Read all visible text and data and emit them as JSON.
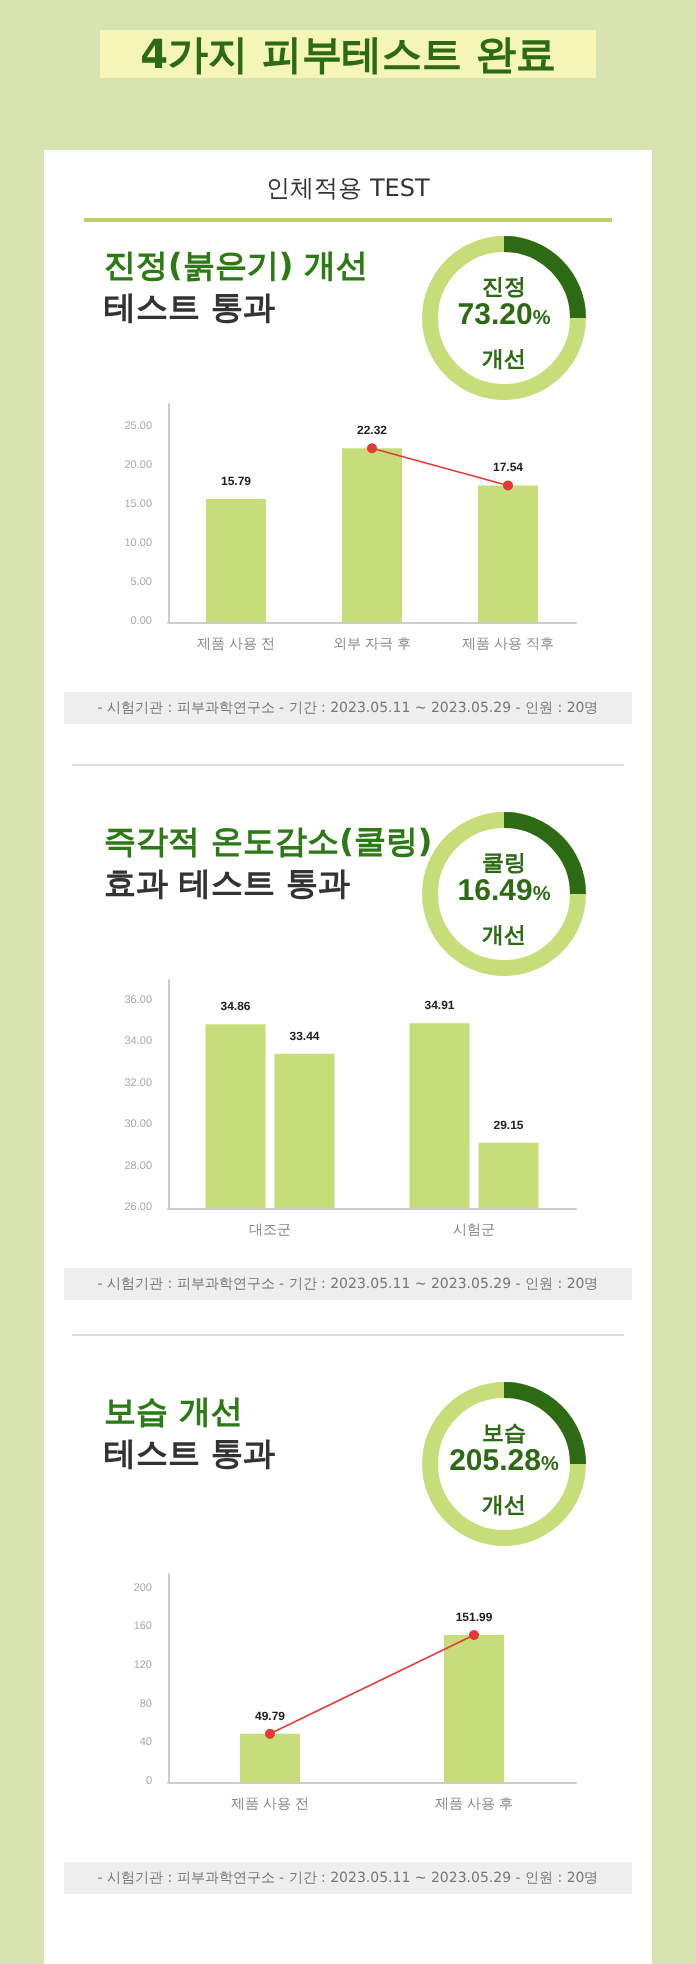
{
  "chart_data": [
    {
      "type": "bar",
      "title": "진정(붉은기) 개선",
      "subtitle": "테스트 통과",
      "annotations": [
        "4가지 피부테스트 완료",
        "인체적용 TEST",
        "진정",
        "73.20%",
        "개선",
        "- 시험기관 : 피부과학연구소   - 기간 : 2023.05.11 ~ 2023.05.29   - 인원 : 20명"
      ],
      "categories": [
        "제품 사용 전",
        "외부 자극 후",
        "제품 사용 직후"
      ],
      "series": [
        {
          "type": "bar",
          "color": "#c6dd7a",
          "values": [
            15.79,
            22.32,
            17.54
          ],
          "data_labels": true
        },
        {
          "type": "line",
          "color": "#e53935",
          "values": [
            null,
            22.32,
            17.54
          ],
          "marker": "circle"
        }
      ],
      "ylim": [
        0,
        28
      ],
      "yticks": [
        {
          "value": 0,
          "label": "0.00"
        },
        {
          "value": 5,
          "label": "5.00"
        },
        {
          "value": 10,
          "label": "10.00"
        },
        {
          "value": 15,
          "label": "15.00"
        },
        {
          "value": 20,
          "label": "20.00"
        },
        {
          "value": 25,
          "label": "25.00"
        }
      ],
      "grid": false
    },
    {
      "type": "bar",
      "title": "즉각적 온도감소(쿨링)",
      "subtitle": "효과 테스트 통과",
      "annotations": [
        "쿨링",
        "16.49%",
        "개선",
        "- 시험기관 : 피부과학연구소   - 기간 : 2023.05.11 ~ 2023.05.29   - 인원 : 20명"
      ],
      "categories": [
        "대조군",
        "시험군"
      ],
      "series": [
        {
          "type": "bar",
          "color": "#c6dd7a",
          "values": [
            34.86,
            34.91
          ],
          "data_labels": true
        },
        {
          "type": "bar",
          "color": "#c6dd7a",
          "values": [
            33.44,
            29.15
          ],
          "data_labels": true
        }
      ],
      "ylim": [
        26,
        37
      ],
      "yticks": [
        {
          "value": 26,
          "label": "26.00"
        },
        {
          "value": 28,
          "label": "28.00"
        },
        {
          "value": 30,
          "label": "30.00"
        },
        {
          "value": 32,
          "label": "32.00"
        },
        {
          "value": 34,
          "label": "34.00"
        },
        {
          "value": 36,
          "label": "36.00"
        }
      ],
      "grid": false
    },
    {
      "type": "bar",
      "title": "보습 개선",
      "subtitle": "테스트 통과",
      "annotations": [
        "보습",
        "205.28%",
        "개선",
        "- 시험기관 : 피부과학연구소   - 기간 : 2023.05.11 ~ 2023.05.29   - 인원 : 20명"
      ],
      "categories": [
        "제품 사용 전",
        "제품 사용 후"
      ],
      "series": [
        {
          "type": "bar",
          "color": "#c6dd7a",
          "values": [
            49.79,
            151.99
          ],
          "data_labels": true
        },
        {
          "type": "line",
          "color": "#e53935",
          "values": [
            49.79,
            151.99
          ],
          "marker": "circle"
        }
      ],
      "ylim": [
        0,
        215
      ],
      "yticks": [
        0,
        40,
        80,
        120,
        160,
        200
      ],
      "grid": false
    }
  ]
}
